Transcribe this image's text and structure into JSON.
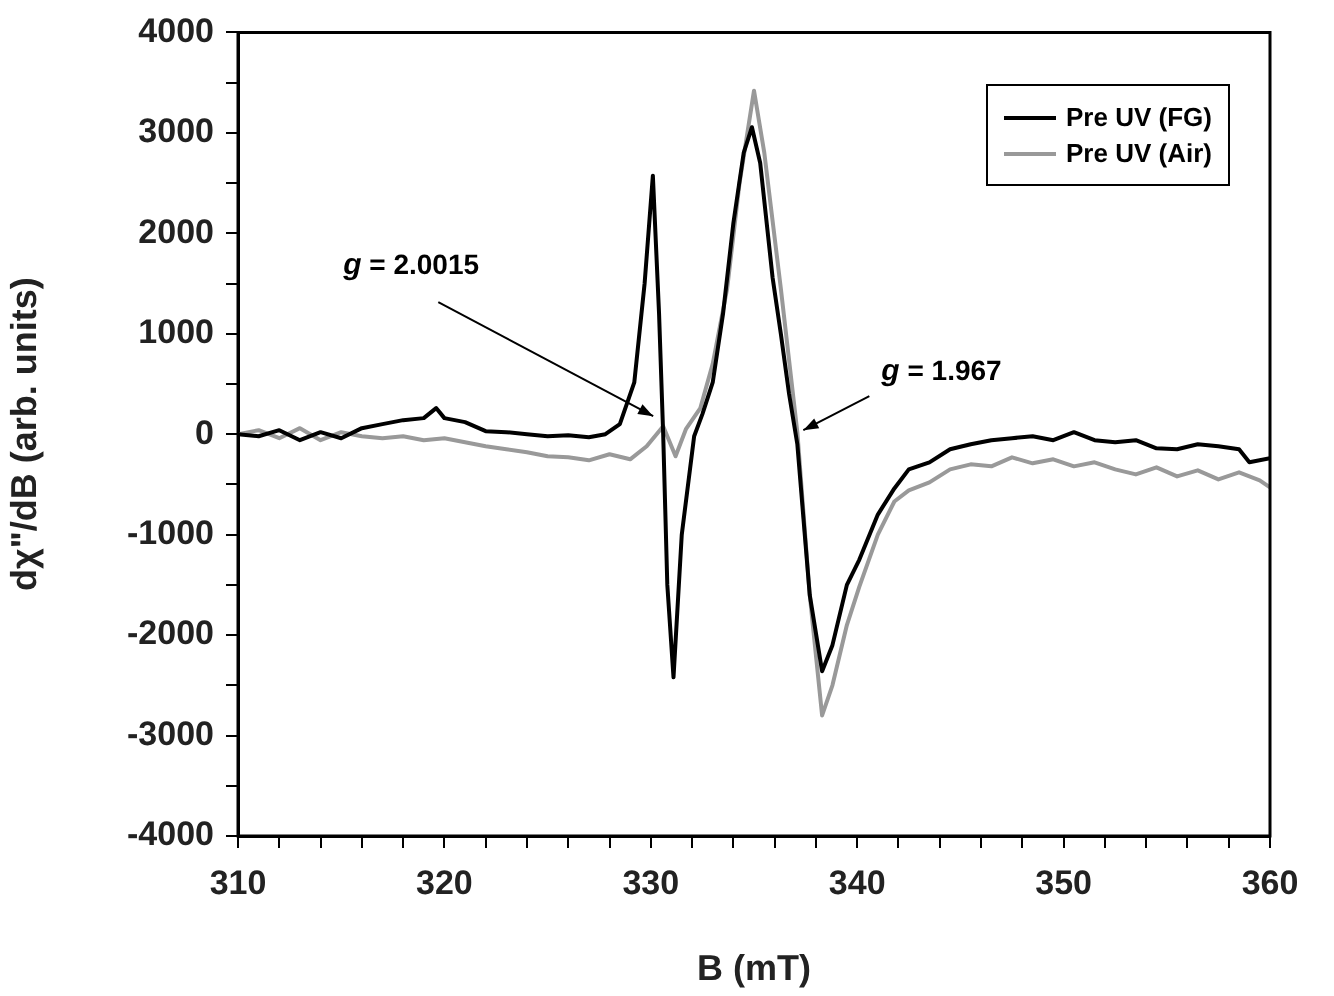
{
  "chart_data": {
    "type": "line",
    "xlabel": "B (mT)",
    "ylabel": "dχ\"/dB (arb. units)",
    "xlim": [
      310,
      360
    ],
    "xticks": [
      310,
      {
        "value": 312,
        "label": null
      },
      {
        "value": 314,
        "label": null
      },
      {
        "value": 316,
        "label": null
      },
      {
        "value": 318,
        "label": null
      },
      320,
      {
        "value": 322,
        "label": null
      },
      {
        "value": 324,
        "label": null
      },
      {
        "value": 326,
        "label": null
      },
      {
        "value": 328,
        "label": null
      },
      330,
      {
        "value": 332,
        "label": null
      },
      {
        "value": 334,
        "label": null
      },
      {
        "value": 336,
        "label": null
      },
      {
        "value": 338,
        "label": null
      },
      340,
      {
        "value": 342,
        "label": null
      },
      {
        "value": 344,
        "label": null
      },
      {
        "value": 346,
        "label": null
      },
      {
        "value": 348,
        "label": null
      },
      350,
      {
        "value": 352,
        "label": null
      },
      {
        "value": 354,
        "label": null
      },
      {
        "value": 356,
        "label": null
      },
      {
        "value": 358,
        "label": null
      },
      360
    ],
    "ylim": [
      -4000,
      4000
    ],
    "yticks": [
      -4000,
      {
        "value": -3500,
        "label": null
      },
      -3000,
      {
        "value": -2500,
        "label": null
      },
      -2000,
      {
        "value": -1500,
        "label": null
      },
      -1000,
      {
        "value": -500,
        "label": null
      },
      0,
      {
        "value": 500,
        "label": null
      },
      1000,
      {
        "value": 1500,
        "label": null
      },
      2000,
      {
        "value": 2500,
        "label": null
      },
      3000,
      {
        "value": 3500,
        "label": null
      },
      4000
    ],
    "grid": false,
    "legend": "top right",
    "marker": "none",
    "line_style": "solid",
    "annotations": [
      {
        "text": "g = 2.0015",
        "x": 330.6,
        "y": 80
      },
      {
        "text": "g = 1.967",
        "x": 337.1,
        "y": 20
      }
    ],
    "series": [
      {
        "name": "Pre UV (FG)",
        "color": "#000000",
        "x": [
          310,
          311,
          312,
          313,
          314,
          315,
          316,
          317,
          318,
          319,
          319.6,
          320,
          321,
          322,
          323,
          324,
          325,
          326,
          327,
          327.8,
          328.5,
          329.2,
          329.7,
          330.1,
          330.4,
          330.6,
          330.8,
          331.1,
          331.5,
          332.1,
          332.5,
          333.0,
          333.5,
          334.0,
          334.5,
          334.9,
          335.3,
          335.9,
          336.3,
          336.7,
          337.1,
          337.7,
          338.3,
          338.8,
          339.5,
          340.1,
          341,
          341.8,
          342.5,
          343.5,
          344.5,
          345.5,
          346.5,
          347.5,
          348.5,
          349.5,
          350.5,
          351.5,
          352.5,
          353.5,
          354.5,
          355.5,
          356.5,
          357.5,
          358.5,
          359,
          360
        ],
        "values": [
          0,
          -20,
          40,
          -60,
          20,
          -40,
          60,
          100,
          140,
          160,
          260,
          160,
          120,
          30,
          20,
          0,
          -20,
          -10,
          -30,
          0,
          100,
          515,
          1500,
          2574,
          1200,
          0,
          -1500,
          -2420,
          -1000,
          -20,
          200,
          515,
          1200,
          2100,
          2800,
          3056,
          2700,
          1560,
          1000,
          400,
          -100,
          -1600,
          -2360,
          -2100,
          -1500,
          -1250,
          -800,
          -540,
          -350,
          -280,
          -150,
          -100,
          -60,
          -40,
          -20,
          -60,
          20,
          -60,
          -80,
          -60,
          -140,
          -150,
          -100,
          -120,
          -150,
          -280,
          -240
        ]
      },
      {
        "name": "Pre UV (Air)",
        "color": "#999999",
        "x": [
          310,
          311,
          312,
          313,
          314,
          315,
          316,
          317,
          318,
          319,
          320,
          321,
          322,
          323,
          324,
          325,
          326,
          327,
          328,
          329,
          329.8,
          330.6,
          331.2,
          331.7,
          332.4,
          333.0,
          333.7,
          334.3,
          335.0,
          335.5,
          336.3,
          337.1,
          337.7,
          338.3,
          338.8,
          339.5,
          340.1,
          341,
          341.8,
          342.5,
          343.5,
          344.5,
          345.5,
          346.5,
          347.5,
          348.5,
          349.5,
          350.5,
          351.5,
          352.5,
          353.5,
          354.5,
          355.5,
          356.5,
          357.5,
          358.5,
          359.5,
          360
        ],
        "values": [
          0,
          40,
          -40,
          60,
          -60,
          20,
          -20,
          -40,
          -20,
          -60,
          -40,
          -80,
          -120,
          -150,
          -180,
          -220,
          -230,
          -260,
          -200,
          -250,
          -120,
          80,
          -220,
          50,
          260,
          700,
          1450,
          2500,
          3420,
          2800,
          1450,
          20,
          -1600,
          -2800,
          -2500,
          -1900,
          -1520,
          -1000,
          -670,
          -560,
          -480,
          -350,
          -300,
          -320,
          -230,
          -290,
          -250,
          -320,
          -280,
          -350,
          -400,
          -330,
          -420,
          -360,
          -450,
          -380,
          -460,
          -530
        ]
      }
    ]
  }
}
